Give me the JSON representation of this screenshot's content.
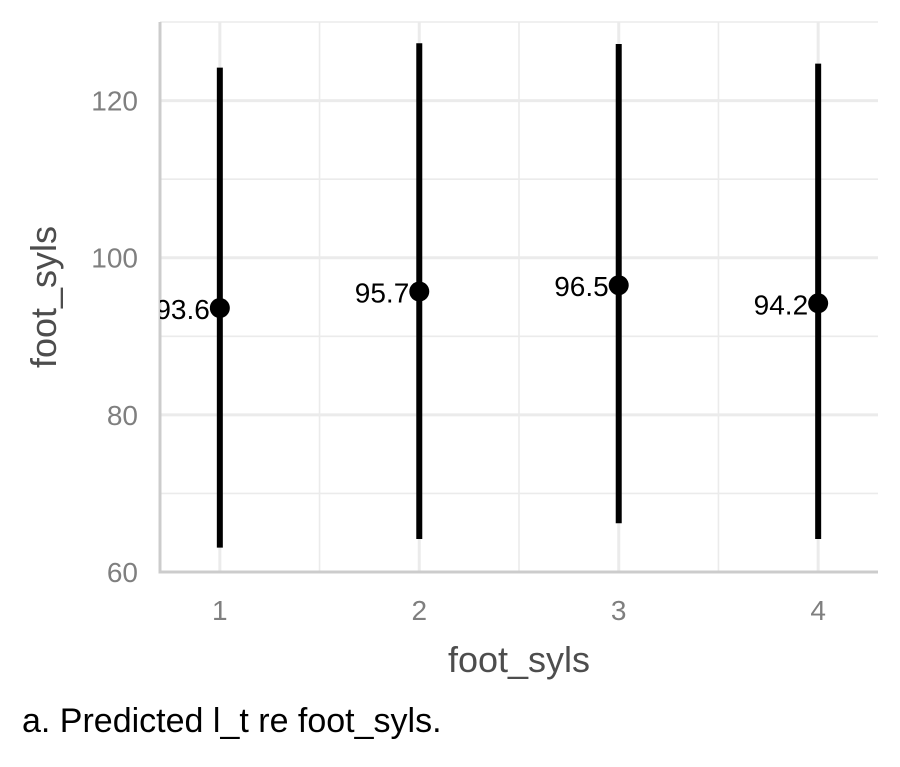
{
  "chart_data": {
    "type": "scatter",
    "xlabel": "foot_syls",
    "ylabel": "foot_syls",
    "x_ticks": [
      "1",
      "2",
      "3",
      "4"
    ],
    "y_ticks": [
      60,
      80,
      100,
      120
    ],
    "ylim": [
      60,
      130
    ],
    "xlim": [
      0.7,
      4.3
    ],
    "grid": true,
    "legend": "none",
    "series": [
      {
        "x": [
          1,
          2,
          3,
          4
        ],
        "y": [
          93.6,
          95.7,
          96.5,
          94.2
        ],
        "lower": [
          63.1,
          64.2,
          66.2,
          64.2
        ],
        "upper": [
          124.2,
          127.3,
          127.2,
          124.7
        ],
        "labels": [
          "93.6",
          "95.7",
          "96.5",
          "94.2"
        ]
      }
    ],
    "colors": {
      "point": "#000000",
      "errorbar": "#000000",
      "grid": "#ebebeb",
      "axis": "#cccccc",
      "tick_text": "#7f7f7f",
      "title_text": "#4d4d4d"
    }
  },
  "caption": "a. Predicted l_t re foot_syls."
}
